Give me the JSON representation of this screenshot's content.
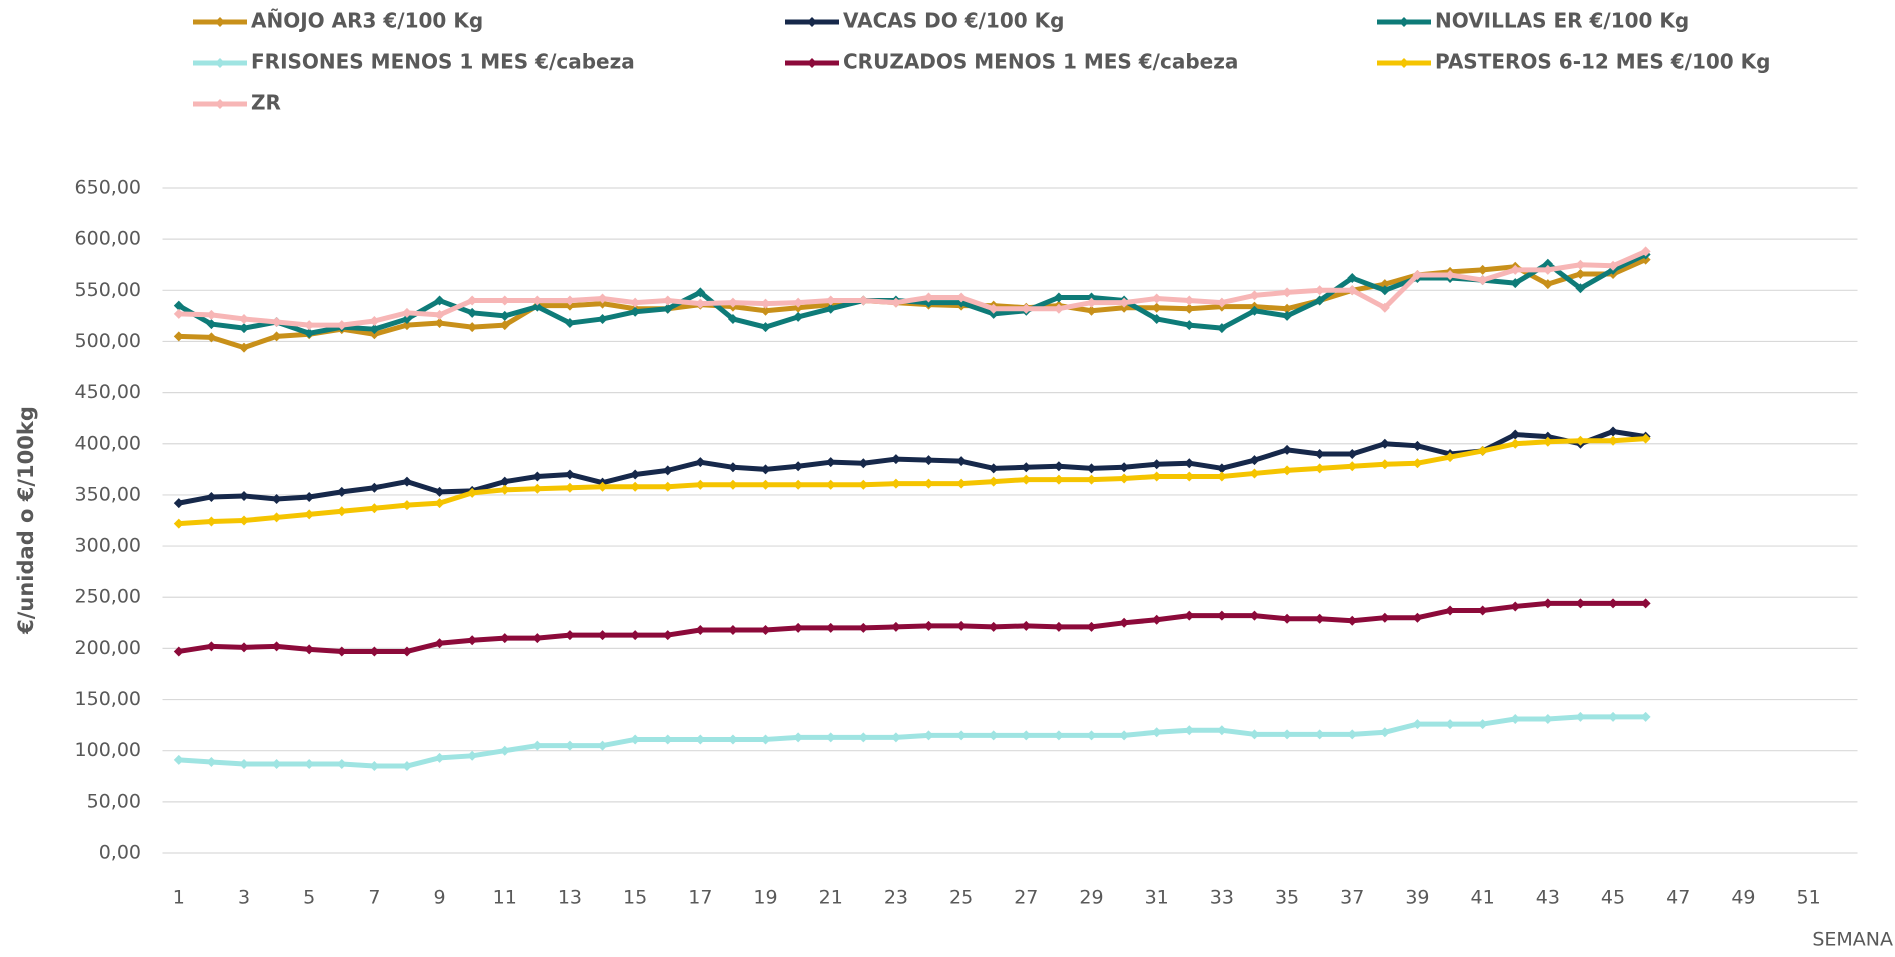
{
  "chart_data": {
    "type": "line",
    "y_label": "€/unidad o €/100kg",
    "x_label": "SEMANA",
    "legend": "top",
    "grid": true,
    "x": [
      1,
      2,
      3,
      4,
      5,
      6,
      7,
      8,
      9,
      10,
      11,
      12,
      13,
      14,
      15,
      16,
      17,
      18,
      19,
      20,
      21,
      22,
      23,
      24,
      25,
      26,
      27,
      28,
      29,
      30,
      31,
      32,
      33,
      34,
      35,
      36,
      37,
      38,
      39,
      40,
      41,
      42,
      43,
      44,
      45,
      46
    ],
    "xlim": [
      0.5,
      52.5
    ],
    "xticks": [
      1,
      3,
      5,
      7,
      9,
      11,
      13,
      15,
      17,
      19,
      21,
      23,
      25,
      27,
      29,
      31,
      33,
      35,
      37,
      39,
      41,
      43,
      45,
      47,
      49,
      51
    ],
    "ylim": [
      0,
      650
    ],
    "yticks": [
      {
        "value": 0,
        "label": "0,00"
      },
      {
        "value": 50,
        "label": "50,00"
      },
      {
        "value": 100,
        "label": "100,00"
      },
      {
        "value": 150,
        "label": "150,00"
      },
      {
        "value": 200,
        "label": "200,00"
      },
      {
        "value": 250,
        "label": "250,00"
      },
      {
        "value": 300,
        "label": "300,00"
      },
      {
        "value": 350,
        "label": "350,00"
      },
      {
        "value": 400,
        "label": "400,00"
      },
      {
        "value": 450,
        "label": "450,00"
      },
      {
        "value": 500,
        "label": "500,00"
      },
      {
        "value": 550,
        "label": "550,00"
      },
      {
        "value": 600,
        "label": "600,00"
      },
      {
        "value": 650,
        "label": "650,00"
      }
    ],
    "series": [
      {
        "name": "AÑOJO AR3 €/100 Kg",
        "color": "#c8901a",
        "values": [
          505,
          504,
          494,
          505,
          507,
          512,
          507,
          516,
          518,
          514,
          516,
          535,
          535,
          537,
          532,
          532,
          536,
          534,
          530,
          533,
          536,
          540,
          538,
          536,
          535,
          535,
          533,
          535,
          530,
          533,
          533,
          532,
          534,
          534,
          532,
          540,
          550,
          556,
          565,
          568,
          570,
          573,
          556,
          566,
          566,
          580
        ]
      },
      {
        "name": "VACAS DO €/100 Kg",
        "color": "#16284a",
        "values": [
          342,
          348,
          349,
          346,
          348,
          353,
          357,
          363,
          353,
          354,
          363,
          368,
          370,
          362,
          370,
          374,
          382,
          377,
          375,
          378,
          382,
          381,
          385,
          384,
          383,
          376,
          377,
          378,
          376,
          377,
          380,
          381,
          376,
          384,
          394,
          390,
          390,
          400,
          398,
          390,
          393,
          409,
          407,
          400,
          412,
          407
        ]
      },
      {
        "name": "NOVILLAS ER €/100 Kg",
        "color": "#0e7b78",
        "values": [
          535,
          517,
          513,
          519,
          508,
          514,
          512,
          522,
          540,
          528,
          525,
          534,
          518,
          522,
          529,
          532,
          548,
          522,
          514,
          524,
          532,
          540,
          540,
          538,
          538,
          527,
          530,
          543,
          543,
          540,
          522,
          516,
          513,
          530,
          525,
          540,
          562,
          550,
          562,
          562,
          560,
          557,
          576,
          552,
          570,
          585
        ]
      },
      {
        "name": "FRISONES MENOS 1 MES €/cabeza",
        "color": "#9fe4e2",
        "values": [
          91,
          89,
          87,
          87,
          87,
          87,
          85,
          85,
          93,
          95,
          100,
          105,
          105,
          105,
          111,
          111,
          111,
          111,
          111,
          113,
          113,
          113,
          113,
          115,
          115,
          115,
          115,
          115,
          115,
          115,
          118,
          120,
          120,
          116,
          116,
          116,
          116,
          118,
          126,
          126,
          126,
          131,
          131,
          133,
          133,
          133
        ]
      },
      {
        "name": "CRUZADOS MENOS 1 MES €/cabeza",
        "color": "#8c0a3a",
        "values": [
          197,
          202,
          201,
          202,
          199,
          197,
          197,
          197,
          205,
          208,
          210,
          210,
          213,
          213,
          213,
          213,
          218,
          218,
          218,
          220,
          220,
          220,
          221,
          222,
          222,
          221,
          222,
          221,
          221,
          225,
          228,
          232,
          232,
          232,
          229,
          229,
          227,
          230,
          230,
          237,
          237,
          241,
          244,
          244,
          244,
          244
        ]
      },
      {
        "name": "PASTEROS 6-12 MES €/100 Kg",
        "color": "#f5c400",
        "values": [
          322,
          324,
          325,
          328,
          331,
          334,
          337,
          340,
          342,
          352,
          355,
          356,
          357,
          358,
          358,
          358,
          360,
          360,
          360,
          360,
          360,
          360,
          361,
          361,
          361,
          363,
          365,
          365,
          365,
          366,
          368,
          368,
          368,
          371,
          374,
          376,
          378,
          380,
          381,
          387,
          393,
          400,
          402,
          403,
          403,
          405
        ]
      },
      {
        "name": "ZR",
        "color": "#f7b6b6",
        "values": [
          527,
          526,
          522,
          519,
          516,
          516,
          520,
          528,
          526,
          540,
          540,
          540,
          540,
          542,
          538,
          540,
          537,
          538,
          537,
          538,
          540,
          540,
          538,
          543,
          543,
          532,
          532,
          532,
          538,
          538,
          542,
          540,
          538,
          545,
          548,
          550,
          550,
          533,
          565,
          565,
          560,
          570,
          570,
          575,
          574,
          588
        ]
      }
    ]
  }
}
